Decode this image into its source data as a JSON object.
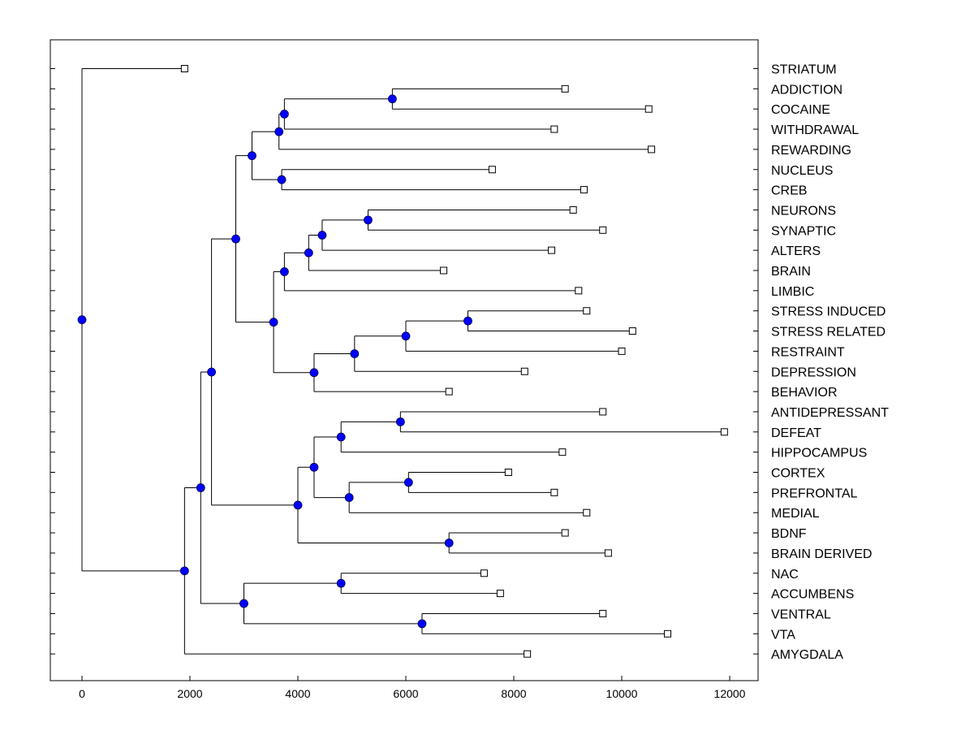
{
  "chart_data": {
    "type": "dendrogram",
    "title": "",
    "xlabel": "",
    "ylabel": "",
    "xlim": [
      -600,
      12500
    ],
    "xticks": [
      0,
      2000,
      4000,
      6000,
      8000,
      10000,
      12000
    ],
    "xtick_labels": [
      "0",
      "2000",
      "4000",
      "6000",
      "8000",
      "10000",
      "12000"
    ],
    "leaves": [
      {
        "label": "STRIATUM",
        "x": 1900
      },
      {
        "label": "ADDICTION",
        "x": 8950
      },
      {
        "label": "COCAINE",
        "x": 10500
      },
      {
        "label": "WITHDRAWAL",
        "x": 8750
      },
      {
        "label": "REWARDING",
        "x": 10550
      },
      {
        "label": "NUCLEUS",
        "x": 7600
      },
      {
        "label": "CREB",
        "x": 9300
      },
      {
        "label": "NEURONS",
        "x": 9100
      },
      {
        "label": "SYNAPTIC",
        "x": 9650
      },
      {
        "label": "ALTERS",
        "x": 8700
      },
      {
        "label": "BRAIN",
        "x": 6700
      },
      {
        "label": "LIMBIC",
        "x": 9200
      },
      {
        "label": "STRESS INDUCED",
        "x": 9350
      },
      {
        "label": "STRESS RELATED",
        "x": 10200
      },
      {
        "label": "RESTRAINT",
        "x": 10000
      },
      {
        "label": "DEPRESSION",
        "x": 8200
      },
      {
        "label": "BEHAVIOR",
        "x": 6800
      },
      {
        "label": "ANTIDEPRESSANT",
        "x": 9650
      },
      {
        "label": "DEFEAT",
        "x": 11900
      },
      {
        "label": "HIPPOCAMPUS",
        "x": 8900
      },
      {
        "label": "CORTEX",
        "x": 7900
      },
      {
        "label": "PREFRONTAL",
        "x": 8750
      },
      {
        "label": "MEDIAL",
        "x": 9350
      },
      {
        "label": "BDNF",
        "x": 8950
      },
      {
        "label": "BRAIN DERIVED",
        "x": 9750
      },
      {
        "label": "NAC",
        "x": 7450
      },
      {
        "label": "ACCUMBENS",
        "x": 7750
      },
      {
        "label": "VENTRAL",
        "x": 9650
      },
      {
        "label": "VTA",
        "x": 10850
      },
      {
        "label": "AMYGDALA",
        "x": 8250
      }
    ],
    "merges": [
      {
        "id": "m1",
        "x": 5750,
        "children": [
          "L1",
          "L2"
        ]
      },
      {
        "id": "m2",
        "x": 3750,
        "children": [
          "m1",
          "L3"
        ]
      },
      {
        "id": "m3",
        "x": 3650,
        "children": [
          "m2",
          "L4"
        ]
      },
      {
        "id": "m4",
        "x": 3700,
        "children": [
          "L5",
          "L6"
        ]
      },
      {
        "id": "m5",
        "x": 3150,
        "children": [
          "m3",
          "m4"
        ]
      },
      {
        "id": "m6",
        "x": 5300,
        "children": [
          "L7",
          "L8"
        ]
      },
      {
        "id": "m7",
        "x": 4450,
        "children": [
          "m6",
          "L9"
        ]
      },
      {
        "id": "m8",
        "x": 4200,
        "children": [
          "m7",
          "L10"
        ]
      },
      {
        "id": "m9",
        "x": 3750,
        "children": [
          "m8",
          "L11"
        ]
      },
      {
        "id": "m10",
        "x": 7150,
        "children": [
          "L12",
          "L13"
        ]
      },
      {
        "id": "m11",
        "x": 6000,
        "children": [
          "m10",
          "L14"
        ]
      },
      {
        "id": "m12",
        "x": 5050,
        "children": [
          "m11",
          "L15"
        ]
      },
      {
        "id": "m13",
        "x": 4300,
        "children": [
          "m12",
          "L16"
        ]
      },
      {
        "id": "m14",
        "x": 3550,
        "children": [
          "m9",
          "m13"
        ]
      },
      {
        "id": "m15",
        "x": 2850,
        "children": [
          "m5",
          "m14"
        ]
      },
      {
        "id": "m16",
        "x": 5900,
        "children": [
          "L17",
          "L18"
        ]
      },
      {
        "id": "m17",
        "x": 4800,
        "children": [
          "m16",
          "L19"
        ]
      },
      {
        "id": "m18",
        "x": 6050,
        "children": [
          "L20",
          "L21"
        ]
      },
      {
        "id": "m19",
        "x": 4950,
        "children": [
          "m18",
          "L22"
        ]
      },
      {
        "id": "m20",
        "x": 4300,
        "children": [
          "m17",
          "m19"
        ]
      },
      {
        "id": "m21",
        "x": 6800,
        "children": [
          "L23",
          "L24"
        ]
      },
      {
        "id": "m22",
        "x": 4000,
        "children": [
          "m20",
          "m21"
        ]
      },
      {
        "id": "m23",
        "x": 2400,
        "children": [
          "m15",
          "m22"
        ]
      },
      {
        "id": "m24",
        "x": 4800,
        "children": [
          "L25",
          "L26"
        ]
      },
      {
        "id": "m25",
        "x": 6300,
        "children": [
          "L27",
          "L28"
        ]
      },
      {
        "id": "m26",
        "x": 3000,
        "children": [
          "m24",
          "m25"
        ]
      },
      {
        "id": "m27",
        "x": 2200,
        "children": [
          "m23",
          "m26"
        ]
      },
      {
        "id": "m28",
        "x": 1900,
        "children": [
          "m27",
          "L29"
        ]
      },
      {
        "id": "m29",
        "x": 0,
        "children": [
          "L0",
          "m28"
        ]
      }
    ],
    "colors": {
      "node_fill": "#0000ff",
      "line": "#000000",
      "leaf_fill": "#ffffff"
    }
  }
}
